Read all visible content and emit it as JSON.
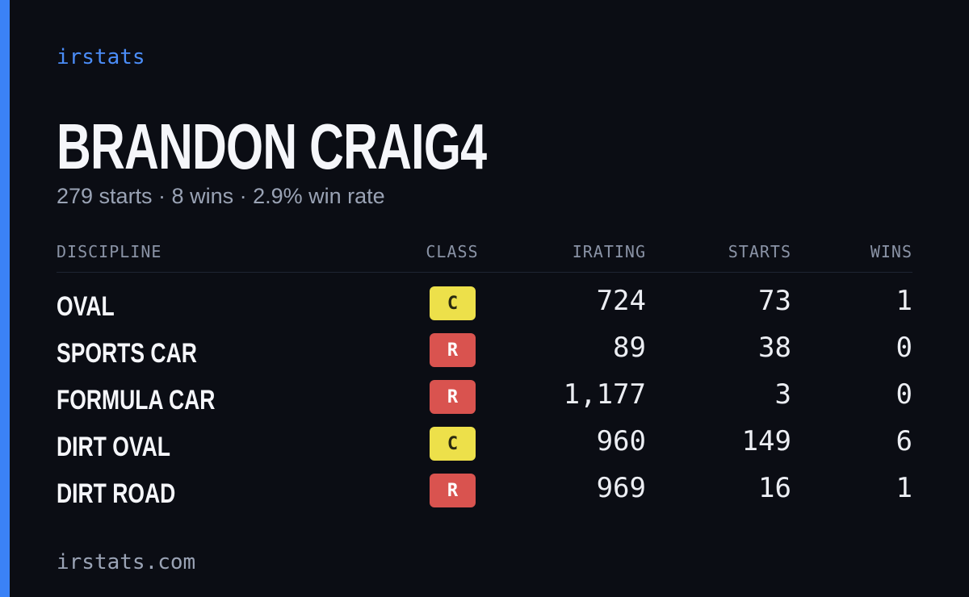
{
  "brand": "irstats",
  "driver": {
    "name": "BRANDON CRAIG4",
    "summary": "279 starts · 8 wins · 2.9% win rate"
  },
  "table": {
    "header": [
      "DISCIPLINE",
      "CLASS",
      "IRATING",
      "STARTS",
      "WINS"
    ],
    "rows": [
      {
        "discipline": "OVAL",
        "class": "C",
        "class_color": "#ede04a",
        "irating": "724",
        "starts": "73",
        "wins": "1"
      },
      {
        "discipline": "SPORTS CAR",
        "class": "R",
        "class_color": "#d9534f",
        "irating": "89",
        "starts": "38",
        "wins": "0"
      },
      {
        "discipline": "FORMULA CAR",
        "class": "R",
        "class_color": "#d9534f",
        "irating": "1,177",
        "starts": "3",
        "wins": "0"
      },
      {
        "discipline": "DIRT OVAL",
        "class": "C",
        "class_color": "#ede04a",
        "irating": "960",
        "starts": "149",
        "wins": "6"
      },
      {
        "discipline": "DIRT ROAD",
        "class": "R",
        "class_color": "#d9534f",
        "irating": "969",
        "starts": "16",
        "wins": "1"
      }
    ]
  },
  "footer": "irstats.com"
}
